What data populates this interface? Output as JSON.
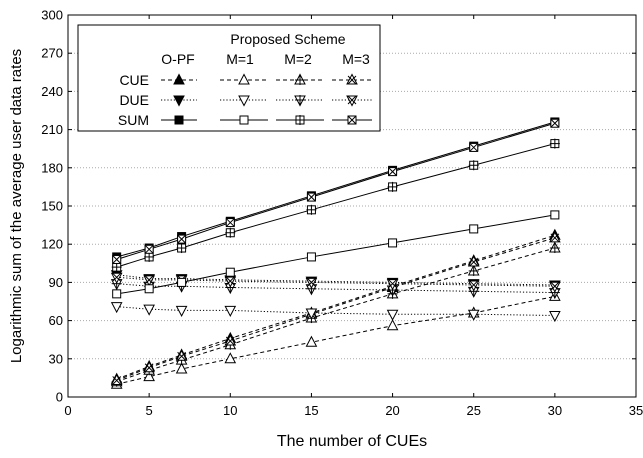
{
  "chart_data": {
    "type": "line",
    "xlabel": "The number of CUEs",
    "ylabel": "Logarithmic sum of the average user data rates",
    "xlim": [
      0,
      35
    ],
    "ylim": [
      0,
      300
    ],
    "xticks": [
      0,
      5,
      10,
      15,
      20,
      25,
      30,
      35
    ],
    "yticks": [
      0,
      30,
      60,
      90,
      120,
      150,
      180,
      210,
      240,
      270,
      300
    ],
    "grid": "horizontal dotted",
    "x": [
      3,
      5,
      7,
      10,
      15,
      20,
      25,
      30
    ],
    "series": [
      {
        "group": "CUE",
        "scheme": "O-PF",
        "style": "dashed",
        "marker": "triangle-up-filled",
        "values": [
          14,
          24,
          33,
          46,
          66,
          87,
          107,
          127
        ]
      },
      {
        "group": "CUE",
        "scheme": "M=1",
        "style": "dashed",
        "marker": "triangle-up-open",
        "values": [
          10,
          16,
          22,
          30,
          43,
          56,
          66,
          79
        ]
      },
      {
        "group": "CUE",
        "scheme": "M=2",
        "style": "dashed",
        "marker": "triangle-up-plus",
        "values": [
          12,
          21,
          29,
          41,
          62,
          81,
          99,
          117
        ]
      },
      {
        "group": "CUE",
        "scheme": "M=3",
        "style": "dashed",
        "marker": "triangle-up-x",
        "values": [
          13,
          23,
          32,
          44,
          65,
          86,
          106,
          125
        ]
      },
      {
        "group": "DUE",
        "scheme": "O-PF",
        "style": "dotted",
        "marker": "triangle-down-filled",
        "values": [
          96,
          93,
          93,
          92,
          91,
          90,
          89,
          88
        ]
      },
      {
        "group": "DUE",
        "scheme": "M=1",
        "style": "dotted",
        "marker": "triangle-down-open",
        "values": [
          71,
          69,
          68,
          68,
          66,
          65,
          65,
          64
        ]
      },
      {
        "group": "DUE",
        "scheme": "M=2",
        "style": "dotted",
        "marker": "triangle-down-plus",
        "values": [
          89,
          87,
          87,
          86,
          85,
          84,
          83,
          82
        ]
      },
      {
        "group": "DUE",
        "scheme": "M=3",
        "style": "dotted",
        "marker": "triangle-down-x",
        "values": [
          94,
          92,
          92,
          91,
          90,
          89,
          88,
          87
        ]
      },
      {
        "group": "SUM",
        "scheme": "O-PF",
        "style": "solid",
        "marker": "square-filled",
        "values": [
          110,
          117,
          126,
          138,
          158,
          178,
          197,
          216
        ]
      },
      {
        "group": "SUM",
        "scheme": "M=1",
        "style": "solid",
        "marker": "square-open",
        "values": [
          81,
          85,
          90,
          98,
          110,
          121,
          132,
          143
        ]
      },
      {
        "group": "SUM",
        "scheme": "M=2",
        "style": "solid",
        "marker": "square-plus",
        "values": [
          102,
          110,
          117,
          129,
          147,
          165,
          182,
          199
        ]
      },
      {
        "group": "SUM",
        "scheme": "M=3",
        "style": "solid",
        "marker": "square-x",
        "values": [
          108,
          116,
          124,
          137,
          157,
          177,
          196,
          215
        ]
      }
    ],
    "legend": {
      "placement": "top-left",
      "header": "Proposed Scheme",
      "columns": [
        "O-PF",
        "M=1",
        "M=2",
        "M=3"
      ],
      "rows": [
        "CUE",
        "DUE",
        "SUM"
      ]
    }
  }
}
